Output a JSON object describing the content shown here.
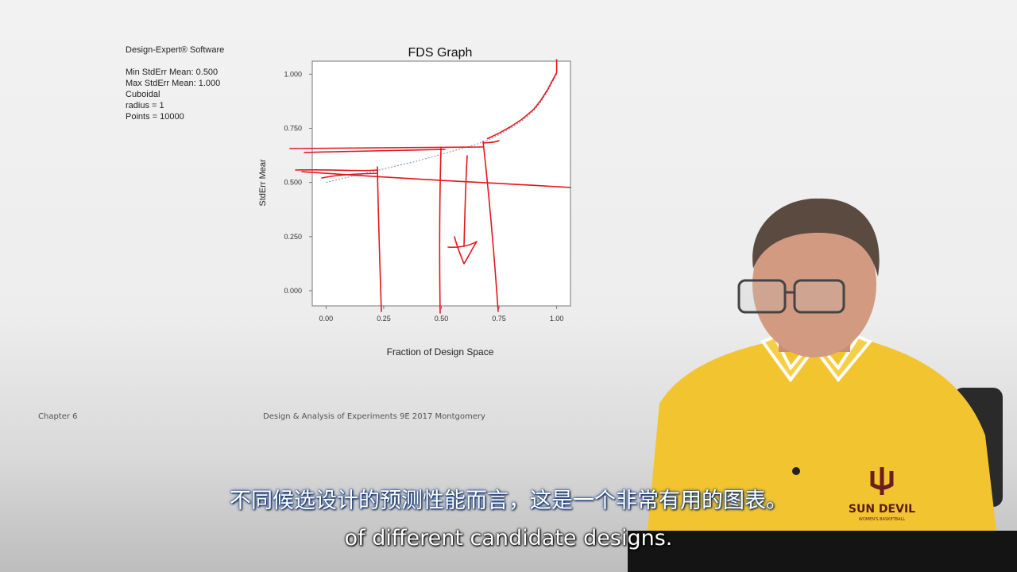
{
  "slide": {
    "software": "Design-Expert® Software",
    "info_lines": [
      "Min StdErr Mean: 0.500",
      "Max StdErr Mean: 1.000",
      "Cuboidal",
      "radius = 1",
      "Points = 10000"
    ],
    "footer_left": "Chapter 6",
    "footer_center": "Design & Analysis of Experiments 9E 2017 Montgomery"
  },
  "chart_data": {
    "type": "line",
    "title": "FDS Graph",
    "xlabel": "Fraction of Design Space",
    "ylabel": "StdErr Mear",
    "xlim": [
      -0.06,
      1.06
    ],
    "ylim": [
      -0.07,
      1.06
    ],
    "x_ticks": [
      "0.00",
      "0.25",
      "0.50",
      "0.75",
      "1.00"
    ],
    "y_ticks": [
      "0.000",
      "0.250",
      "0.500",
      "0.750",
      "1.000"
    ],
    "grid": false,
    "series": [
      {
        "x": [
          0.0,
          0.1,
          0.2,
          0.3,
          0.4,
          0.5,
          0.55,
          0.6,
          0.65,
          0.7,
          0.75,
          0.8,
          0.85,
          0.9,
          0.93,
          0.96,
          0.98,
          1.0
        ],
        "y": [
          0.5,
          0.525,
          0.55,
          0.575,
          0.6,
          0.63,
          0.645,
          0.66,
          0.675,
          0.695,
          0.72,
          0.75,
          0.785,
          0.83,
          0.87,
          0.92,
          0.96,
          1.0
        ]
      }
    ],
    "annotation_color": "#e4161b"
  },
  "subtitles": {
    "zh": "不同候选设计的预测性能而言，这是一个非常有用的图表。",
    "en": "of different candidate designs."
  },
  "shirt_text": {
    "line1": "SUN DEVIL",
    "line2": "WOMEN'S BASKETBALL"
  }
}
